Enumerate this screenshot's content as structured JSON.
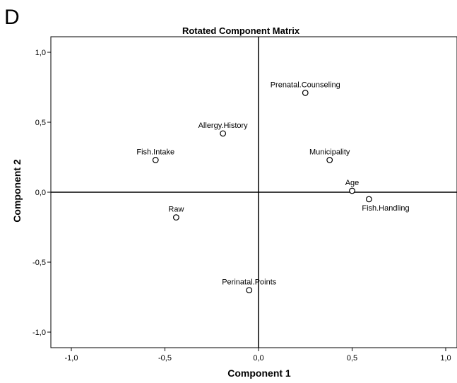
{
  "panel_label": "D",
  "chart_data": {
    "type": "scatter",
    "title": "Rotated Component Matrix",
    "xlabel": "Component 1",
    "ylabel": "Component 2",
    "xlim": [
      -1.0,
      1.0
    ],
    "ylim": [
      -1.0,
      1.0
    ],
    "xticks": [
      "-1,0",
      "-0,5",
      "0,0",
      "0,5",
      "1,0"
    ],
    "yticks": [
      "1,0",
      "0,5",
      "0,0",
      "-0,5",
      "-1,0"
    ],
    "grid": false,
    "points": [
      {
        "label": "Prenatal.Counseling",
        "x": 0.25,
        "y": 0.71
      },
      {
        "label": "Allergy.History",
        "x": -0.19,
        "y": 0.42
      },
      {
        "label": "Fish.Intake",
        "x": -0.55,
        "y": 0.23
      },
      {
        "label": "Municipality",
        "x": 0.38,
        "y": 0.23
      },
      {
        "label": "Age",
        "x": 0.5,
        "y": 0.01
      },
      {
        "label": "Fish.Handling",
        "x": 0.59,
        "y": -0.05
      },
      {
        "label": "Raw",
        "x": -0.44,
        "y": -0.18
      },
      {
        "label": "Perinatal.Points",
        "x": -0.05,
        "y": -0.7
      }
    ]
  }
}
